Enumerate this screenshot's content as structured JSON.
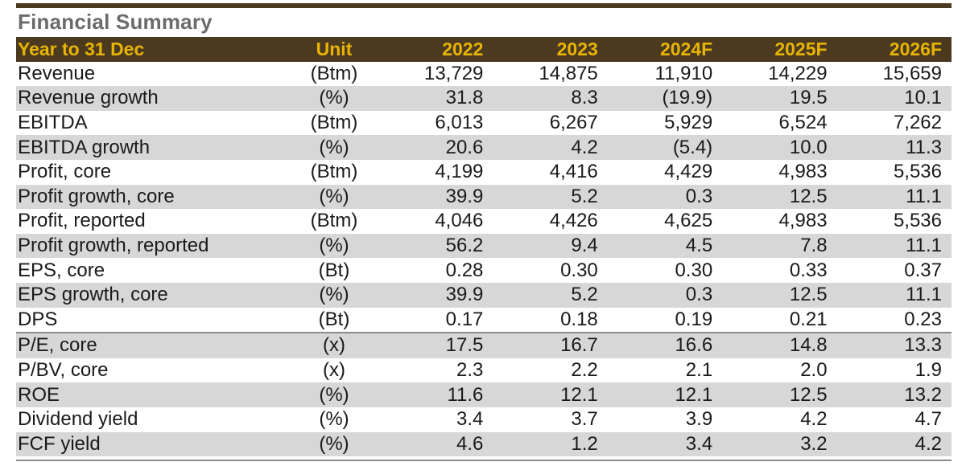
{
  "title": "Financial Summary",
  "columns": [
    "Year to 31 Dec",
    "Unit",
    "2022",
    "2023",
    "2024F",
    "2025F",
    "2026F"
  ],
  "rows": [
    {
      "label": "Revenue",
      "unit": "(Btm)",
      "values": [
        "13,729",
        "14,875",
        "11,910",
        "14,229",
        "15,659"
      ]
    },
    {
      "label": "Revenue growth",
      "unit": "(%)",
      "values": [
        "31.8",
        "8.3",
        "(19.9)",
        "19.5",
        "10.1"
      ]
    },
    {
      "label": "EBITDA",
      "unit": "(Btm)",
      "values": [
        "6,013",
        "6,267",
        "5,929",
        "6,524",
        "7,262"
      ]
    },
    {
      "label": "EBITDA growth",
      "unit": "(%)",
      "values": [
        "20.6",
        "4.2",
        "(5.4)",
        "10.0",
        "11.3"
      ]
    },
    {
      "label": "Profit, core",
      "unit": "(Btm)",
      "values": [
        "4,199",
        "4,416",
        "4,429",
        "4,983",
        "5,536"
      ]
    },
    {
      "label": "Profit growth, core",
      "unit": "(%)",
      "values": [
        "39.9",
        "5.2",
        "0.3",
        "12.5",
        "11.1"
      ]
    },
    {
      "label": "Profit, reported",
      "unit": "(Btm)",
      "values": [
        "4,046",
        "4,426",
        "4,625",
        "4,983",
        "5,536"
      ]
    },
    {
      "label": "Profit growth, reported",
      "unit": "(%)",
      "values": [
        "56.2",
        "9.4",
        "4.5",
        "7.8",
        "11.1"
      ]
    },
    {
      "label": "EPS, core",
      "unit": "(Bt)",
      "values": [
        "0.28",
        "0.30",
        "0.30",
        "0.33",
        "0.37"
      ]
    },
    {
      "label": "EPS growth, core",
      "unit": "(%)",
      "values": [
        "39.9",
        "5.2",
        "0.3",
        "12.5",
        "11.1"
      ]
    },
    {
      "label": "DPS",
      "unit": "(Bt)",
      "values": [
        "0.17",
        "0.18",
        "0.19",
        "0.21",
        "0.23"
      ]
    },
    {
      "label": "P/E, core",
      "unit": "(x)",
      "values": [
        "17.5",
        "16.7",
        "16.6",
        "14.8",
        "13.3"
      ]
    },
    {
      "label": "P/BV, core",
      "unit": "(x)",
      "values": [
        "2.3",
        "2.2",
        "2.1",
        "2.0",
        "1.9"
      ]
    },
    {
      "label": "ROE",
      "unit": "(%)",
      "values": [
        "11.6",
        "12.1",
        "12.1",
        "12.5",
        "13.2"
      ]
    },
    {
      "label": "Dividend yield",
      "unit": "(%)",
      "values": [
        "3.4",
        "3.7",
        "3.9",
        "4.2",
        "4.7"
      ]
    },
    {
      "label": "FCF yield",
      "unit": "(%)",
      "values": [
        "4.6",
        "1.2",
        "3.4",
        "3.2",
        "4.2"
      ]
    }
  ],
  "colors": {
    "header_bg": "#4b3a20",
    "header_text": "#e8b400",
    "stripe": "#d7d7d7",
    "title": "#6b6b6b"
  }
}
